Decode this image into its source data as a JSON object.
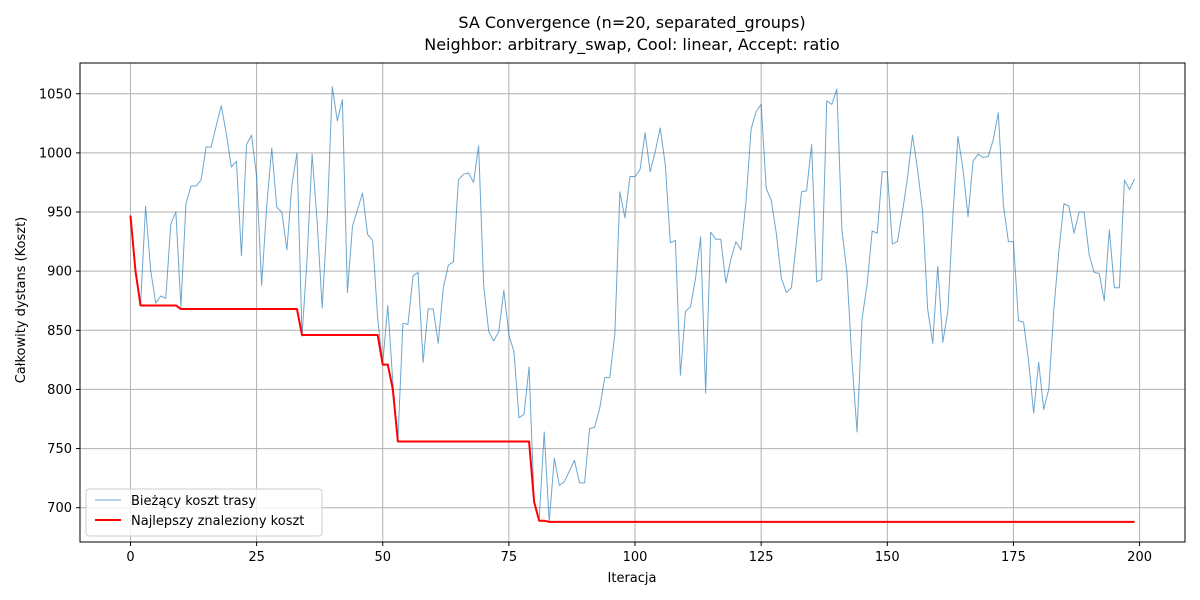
{
  "chart_data": {
    "type": "line",
    "title": "SA Convergence (n=20, separated_groups)",
    "subtitle": "Neighbor: arbitrary_swap, Cool: linear, Accept: ratio",
    "xlabel": "Iteracja",
    "ylabel": "Całkowity dystans (Koszt)",
    "xlim": [
      -10,
      209
    ],
    "ylim": [
      671,
      1076
    ],
    "xticks": [
      0,
      25,
      50,
      75,
      100,
      125,
      150,
      175,
      200
    ],
    "yticks": [
      700,
      750,
      800,
      850,
      900,
      950,
      1000,
      1050
    ],
    "grid": true,
    "legend_position": "lower-left",
    "series": [
      {
        "name": "Bieżący koszt trasy",
        "color": "#1f77b4",
        "x_start": 0,
        "values": [
          947,
          900,
          871,
          955,
          901,
          873,
          879,
          877,
          940,
          950,
          870,
          957,
          972,
          972,
          977,
          1005,
          1005,
          1023,
          1040,
          1016,
          988,
          993,
          913,
          1007,
          1015,
          980,
          888,
          955,
          1004,
          954,
          950,
          918,
          973,
          1000,
          845,
          910,
          999,
          942,
          869,
          945,
          1056,
          1027,
          1045,
          882,
          938,
          952,
          966,
          931,
          926,
          860,
          822,
          871,
          806,
          756,
          856,
          855,
          896,
          899,
          823,
          868,
          868,
          839,
          886,
          905,
          908,
          977,
          982,
          983,
          975,
          1006,
          888,
          849,
          841,
          849,
          884,
          846,
          832,
          776,
          779,
          819,
          705,
          690,
          764,
          688,
          742,
          719,
          722,
          731,
          740,
          721,
          721,
          767,
          768,
          784,
          810,
          810,
          847,
          967,
          945,
          980,
          980,
          986,
          1017,
          984,
          1001,
          1021,
          990,
          924,
          926,
          812,
          866,
          870,
          894,
          929,
          797,
          933,
          927,
          927,
          890,
          910,
          925,
          918,
          959,
          1020,
          1035,
          1041,
          970,
          960,
          932,
          894,
          882,
          886,
          925,
          967,
          968,
          1007,
          891,
          893,
          1044,
          1041,
          1054,
          935,
          899,
          824,
          764,
          860,
          889,
          934,
          932,
          984,
          984,
          923,
          925,
          950,
          979,
          1015,
          986,
          950,
          868,
          839,
          904,
          840,
          866,
          947,
          1014,
          986,
          946,
          993,
          999,
          996,
          997,
          1011,
          1034,
          956,
          925,
          925,
          858,
          857,
          824,
          780,
          823,
          783,
          800,
          867,
          917,
          957,
          955,
          932,
          950,
          950,
          914,
          899,
          898,
          875,
          935,
          886,
          886,
          977,
          969,
          978
        ]
      },
      {
        "name": "Najlepszy znaleziony koszt",
        "color": "#ff0000",
        "x_start": 0,
        "values": [
          947,
          900,
          871,
          871,
          871,
          871,
          871,
          871,
          871,
          871,
          868,
          868,
          868,
          868,
          868,
          868,
          868,
          868,
          868,
          868,
          868,
          868,
          868,
          868,
          868,
          868,
          868,
          868,
          868,
          868,
          868,
          868,
          868,
          868,
          846,
          846,
          846,
          846,
          846,
          846,
          846,
          846,
          846,
          846,
          846,
          846,
          846,
          846,
          846,
          846,
          821,
          821,
          800,
          756,
          756,
          756,
          756,
          756,
          756,
          756,
          756,
          756,
          756,
          756,
          756,
          756,
          756,
          756,
          756,
          756,
          756,
          756,
          756,
          756,
          756,
          756,
          756,
          756,
          756,
          756,
          705,
          689,
          689,
          688,
          688,
          688,
          688,
          688,
          688,
          688,
          688,
          688,
          688,
          688,
          688,
          688,
          688,
          688,
          688,
          688,
          688,
          688,
          688,
          688,
          688,
          688,
          688,
          688,
          688,
          688,
          688,
          688,
          688,
          688,
          688,
          688,
          688,
          688,
          688,
          688,
          688,
          688,
          688,
          688,
          688,
          688,
          688,
          688,
          688,
          688,
          688,
          688,
          688,
          688,
          688,
          688,
          688,
          688,
          688,
          688,
          688,
          688,
          688,
          688,
          688,
          688,
          688,
          688,
          688,
          688,
          688,
          688,
          688,
          688,
          688,
          688,
          688,
          688,
          688,
          688,
          688,
          688,
          688,
          688,
          688,
          688,
          688,
          688,
          688,
          688,
          688,
          688,
          688,
          688,
          688,
          688,
          688,
          688,
          688,
          688,
          688,
          688,
          688,
          688,
          688,
          688,
          688,
          688,
          688,
          688,
          688,
          688,
          688,
          688,
          688,
          688,
          688,
          688,
          688,
          688
        ]
      }
    ]
  }
}
